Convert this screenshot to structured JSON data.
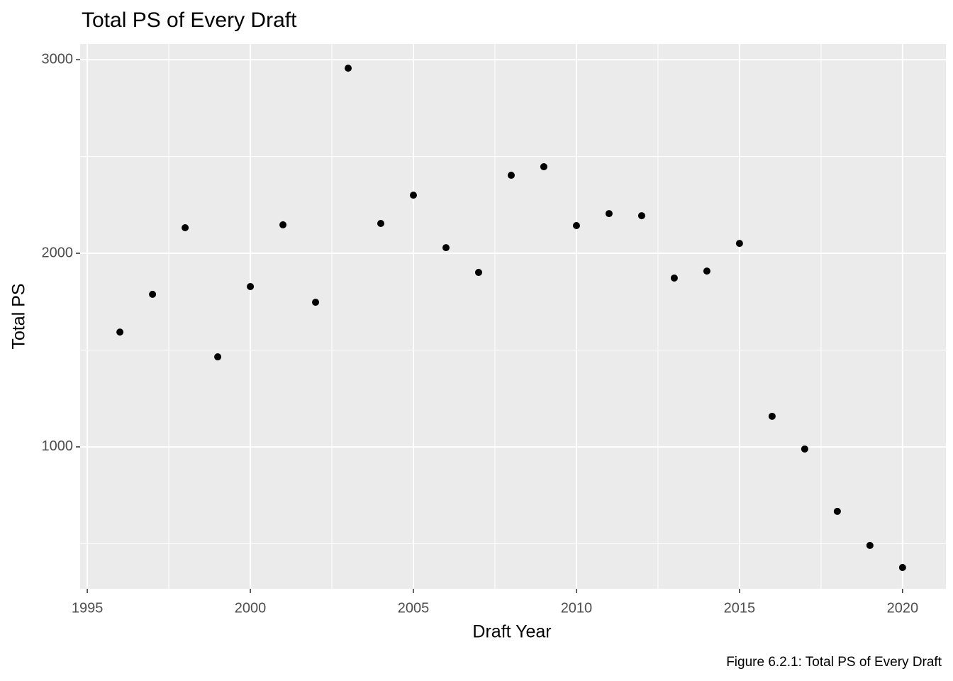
{
  "chart_data": {
    "type": "scatter",
    "title": "Total PS of Every Draft",
    "x_label": "Draft Year",
    "y_label": "Total PS",
    "caption": "Figure 6.2.1: Total PS of Every Draft",
    "x": [
      1996,
      1997,
      1998,
      1999,
      2000,
      2001,
      2002,
      2003,
      2004,
      2005,
      2006,
      2007,
      2008,
      2009,
      2010,
      2011,
      2012,
      2013,
      2014,
      2015,
      2016,
      2017,
      2018,
      2019,
      2020
    ],
    "series": [
      {
        "name": "Total PS",
        "color": "#000000",
        "values": [
          1593,
          1788,
          2132,
          1465,
          1828,
          2147,
          1747,
          2956,
          2154,
          2300,
          2029,
          1901,
          2403,
          2447,
          2143,
          2205,
          2194,
          1872,
          1908,
          2051,
          1158,
          989,
          667,
          491,
          377
        ]
      }
    ],
    "xlim": [
      1994.78,
      2021.33
    ],
    "ylim": [
      267,
      3081
    ],
    "xticks": [
      1995,
      2000,
      2005,
      2010,
      2015,
      2020
    ],
    "yticks": [
      1000,
      2000,
      3000
    ],
    "grid": true
  }
}
